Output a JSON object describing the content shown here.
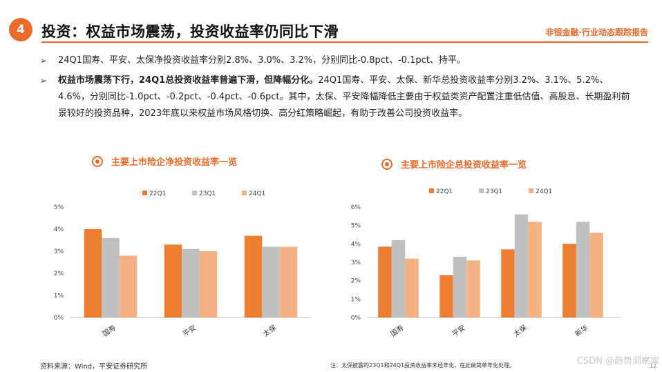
{
  "header": {
    "badge": "4",
    "title": "投资：权益市场震荡，投资收益率仍同比下滑",
    "tagline": "非银金融·行业动态跟踪报告"
  },
  "bullets": [
    {
      "bold": "",
      "text": "24Q1国寿、平安、太保净投资收益率分别2.8%、3.0%、3.2%，分别同比-0.8pct、-0.1pct、持平。"
    },
    {
      "bold": "权益市场震荡下行，24Q1总投资收益率普遍下滑，但降幅分化。",
      "text": "24Q1国寿、平安、太保、新华总投资收益率分别3.2%、3.1%、5.2%、4.6%，分别同比-1.0pct、-0.2pct、-0.4pct、-0.6pct。其中，太保、平安降幅降低主要由于权益类资产配置注重低估值、高股息、长期盈利前景较好的投资品种，2023年底以来权益市场风格切换、高分红策略崛起，有助于改善公司投资收益率。"
    }
  ],
  "footer": {
    "source": "资料来源：Wind，平安证券研究所",
    "note": "注：太保披露的23Q1和24Q1投资收益率未经年化，在此做简单年化处理。",
    "watermark": "CSDN @趋势洞察库",
    "page": "12"
  },
  "chart_data": [
    {
      "type": "bar",
      "title": "主要上市险企净投资收益率一览",
      "categories": [
        "国寿",
        "平安",
        "太保"
      ],
      "series": [
        {
          "name": "22Q1",
          "values": [
            4.0,
            3.3,
            3.7
          ]
        },
        {
          "name": "23Q1",
          "values": [
            3.6,
            3.1,
            3.2
          ]
        },
        {
          "name": "24Q1",
          "values": [
            2.8,
            3.0,
            3.2
          ]
        }
      ],
      "ylim": [
        0,
        5
      ],
      "yticks": [
        "0%",
        "1%",
        "2%",
        "3%",
        "4%",
        "5%"
      ],
      "legend": "top",
      "grid": false,
      "colors": [
        "#ed7d31",
        "#c0c0c0",
        "#f4b183"
      ]
    },
    {
      "type": "bar",
      "title": "主要上市险企总投资收益率一览",
      "categories": [
        "国寿",
        "平安",
        "太保",
        "新华"
      ],
      "series": [
        {
          "name": "22Q1",
          "values": [
            3.85,
            2.3,
            3.7,
            4.0
          ]
        },
        {
          "name": "23Q1",
          "values": [
            4.2,
            3.3,
            5.6,
            5.2
          ]
        },
        {
          "name": "24Q1",
          "values": [
            3.2,
            3.1,
            5.2,
            4.6
          ]
        }
      ],
      "ylim": [
        0,
        6
      ],
      "yticks": [
        "0%",
        "1%",
        "2%",
        "3%",
        "4%",
        "5%",
        "6%"
      ],
      "legend": "top",
      "grid": false,
      "colors": [
        "#ed7d31",
        "#c0c0c0",
        "#f4b183"
      ]
    }
  ]
}
